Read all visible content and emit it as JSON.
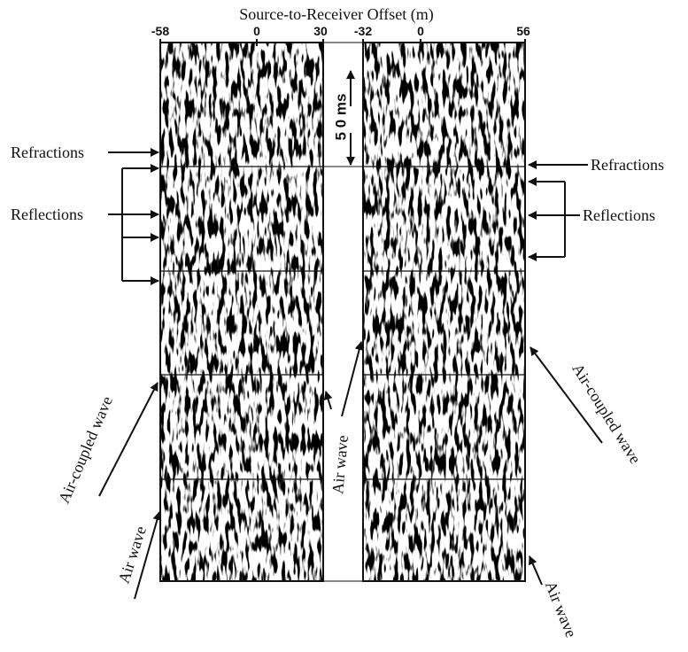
{
  "title": "Source-to-Receiver Offset (m)",
  "left_panel": {
    "offsets": [
      "-58",
      "0",
      "30"
    ]
  },
  "right_panel": {
    "offsets": [
      "-32",
      "0",
      "56"
    ]
  },
  "scale_label": "5 0 ms",
  "annotations": {
    "left_refractions": "Refractions",
    "left_reflections": "Reflections",
    "left_air_coupled_wave": "Air-coupled wave",
    "left_air_wave": "Air wave",
    "middle_air_wave": "Air wave",
    "right_refractions": "Refractions",
    "right_reflections": "Reflections",
    "right_air_coupled_wave": "Air-coupled wave",
    "right_air_wave": "Air wave"
  }
}
